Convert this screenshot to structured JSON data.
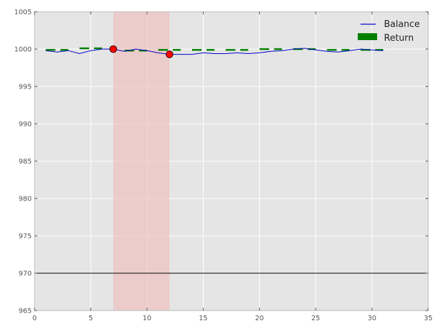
{
  "chart_data": {
    "type": "line",
    "title": "",
    "xlabel": "",
    "ylabel": "",
    "xlim": [
      0,
      35
    ],
    "ylim": [
      965,
      1005
    ],
    "x_ticks": [
      0,
      5,
      10,
      15,
      20,
      25,
      30,
      35
    ],
    "y_ticks": [
      965,
      970,
      975,
      980,
      985,
      990,
      995,
      1000,
      1005
    ],
    "x_tick_labels": [
      "0",
      "5",
      "10",
      "15",
      "20",
      "25",
      "30",
      "35"
    ],
    "y_tick_labels": [
      "965",
      "970",
      "975",
      "980",
      "985",
      "990",
      "995",
      "1000",
      "1005"
    ],
    "grid": true,
    "legend_placement": "top-right",
    "background_color": "#e5e5e5",
    "reference_line": {
      "y": 970,
      "color": "#000000"
    },
    "shaded_region": {
      "x_start": 7,
      "x_end": 12,
      "color": "#f0c0c0"
    },
    "series": [
      {
        "name": "Balance",
        "color": "#0000cc",
        "style": "line",
        "x": [
          1,
          2,
          3,
          4,
          5,
          6,
          7,
          8,
          9,
          10,
          11,
          12,
          13,
          14,
          15,
          16,
          17,
          18,
          19,
          20,
          21,
          22,
          23,
          24,
          25,
          26,
          27,
          28,
          29,
          30,
          31
        ],
        "y": [
          999.8,
          999.6,
          999.8,
          999.4,
          999.8,
          1000.0,
          1000.0,
          999.7,
          1000.0,
          999.8,
          999.5,
          999.3,
          999.3,
          999.3,
          999.5,
          999.4,
          999.4,
          999.5,
          999.4,
          999.5,
          999.7,
          999.8,
          1000.0,
          1000.1,
          999.9,
          999.7,
          999.6,
          999.8,
          1000.0,
          999.9,
          999.8
        ]
      },
      {
        "name": "Return",
        "color": "#008000",
        "style": "legend-patch",
        "x": [],
        "y": []
      }
    ],
    "return_segments": [
      {
        "x": [
          1,
          3
        ],
        "y": [
          999.9,
          999.9
        ]
      },
      {
        "x": [
          4,
          6
        ],
        "y": [
          1000.1,
          1000.1
        ]
      },
      {
        "x": [
          8,
          10
        ],
        "y": [
          999.8,
          999.8
        ]
      },
      {
        "x": [
          11,
          13
        ],
        "y": [
          999.9,
          999.9
        ]
      },
      {
        "x": [
          14,
          16
        ],
        "y": [
          999.9,
          999.9
        ]
      },
      {
        "x": [
          17,
          19
        ],
        "y": [
          999.9,
          999.9
        ]
      },
      {
        "x": [
          20,
          22
        ],
        "y": [
          1000.0,
          1000.0
        ]
      },
      {
        "x": [
          23,
          25
        ],
        "y": [
          1000.0,
          1000.0
        ]
      },
      {
        "x": [
          26,
          28
        ],
        "y": [
          999.9,
          999.9
        ]
      },
      {
        "x": [
          29,
          31
        ],
        "y": [
          999.9,
          999.9
        ]
      }
    ],
    "markers": [
      {
        "x": 7,
        "y": 1000.0,
        "color": "#ff0000"
      },
      {
        "x": 12,
        "y": 999.3,
        "color": "#ff0000"
      }
    ]
  }
}
